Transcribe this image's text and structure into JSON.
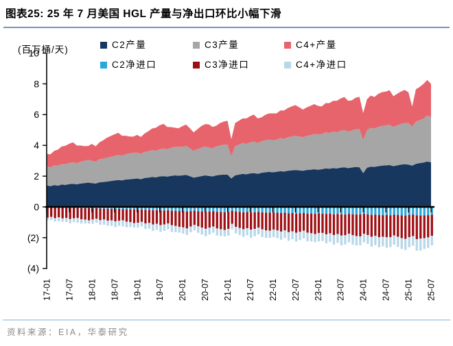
{
  "header": {
    "title": "图表25:  25 年 7 月美国 HGL 产量与净出口环比小幅下滑"
  },
  "footer": {
    "source": "资料来源：EIA，华泰研究"
  },
  "colors": {
    "title_rule": "#7295BE",
    "footer_rule": "#BDD7EE",
    "footer_text": "#8A8A8A",
    "axis": "#000000"
  },
  "legend": [
    {
      "label": "C2产量",
      "color": "#17375E"
    },
    {
      "label": "C3产量",
      "color": "#A6A6A6"
    },
    {
      "label": "C4+产量",
      "color": "#E8646C"
    },
    {
      "label": "C2净进口",
      "color": "#29A8DC"
    },
    {
      "label": "C3净进口",
      "color": "#9E0F14"
    },
    {
      "label": "C4+净进口",
      "color": "#B8D7E8"
    }
  ],
  "chart_data": {
    "type": "combo: stacked-area (production, monthly) + stacked-bar (net imports, monthly)",
    "unit_label": "(百万桶/天)",
    "x_monthly_start": "2017-01",
    "x_monthly_end": "2025-07",
    "x_tick_labels": [
      "17-01",
      "17-07",
      "18-01",
      "18-07",
      "19-01",
      "19-07",
      "20-01",
      "20-07",
      "21-01",
      "21-07",
      "22-01",
      "22-07",
      "23-01",
      "23-07",
      "24-01",
      "24-07",
      "25-01",
      "25-07"
    ],
    "y_ticks": [
      10,
      8,
      6,
      4,
      2,
      0,
      -2,
      -4
    ],
    "y_tick_labels": [
      "10",
      "8",
      "6",
      "4",
      "2",
      "0",
      "(2)",
      "(4)"
    ],
    "ylim": [
      -4,
      10
    ],
    "grid": false,
    "legend_position": "top",
    "series": [
      {
        "name": "C2产量",
        "type": "area",
        "color": "#17375E",
        "values": [
          1.4,
          1.35,
          1.42,
          1.38,
          1.45,
          1.43,
          1.48,
          1.5,
          1.47,
          1.52,
          1.55,
          1.58,
          1.55,
          1.52,
          1.6,
          1.62,
          1.65,
          1.68,
          1.72,
          1.75,
          1.73,
          1.78,
          1.8,
          1.82,
          1.85,
          1.8,
          1.88,
          1.9,
          1.95,
          1.92,
          1.98,
          2.0,
          1.97,
          2.02,
          2.05,
          2.03,
          2.05,
          2.08,
          2.0,
          1.9,
          1.95,
          2.0,
          2.05,
          2.02,
          1.98,
          2.05,
          2.08,
          2.1,
          2.1,
          1.85,
          2.05,
          2.1,
          2.15,
          2.12,
          2.18,
          2.2,
          2.15,
          2.22,
          2.25,
          2.28,
          2.25,
          2.28,
          2.32,
          2.3,
          2.35,
          2.38,
          2.4,
          2.38,
          2.35,
          2.4,
          2.42,
          2.45,
          2.42,
          2.45,
          2.5,
          2.48,
          2.52,
          2.5,
          2.55,
          2.58,
          2.52,
          2.56,
          2.6,
          2.58,
          2.2,
          2.55,
          2.62,
          2.6,
          2.65,
          2.68,
          2.7,
          2.72,
          2.65,
          2.7,
          2.75,
          2.78,
          2.75,
          2.68,
          2.8,
          2.85,
          2.88,
          2.95,
          2.9
        ]
      },
      {
        "name": "C3产量",
        "type": "area",
        "color": "#A6A6A6",
        "values": [
          1.25,
          1.22,
          1.28,
          1.3,
          1.33,
          1.35,
          1.38,
          1.4,
          1.37,
          1.42,
          1.45,
          1.48,
          1.45,
          1.42,
          1.5,
          1.52,
          1.55,
          1.58,
          1.6,
          1.62,
          1.6,
          1.65,
          1.68,
          1.7,
          1.68,
          1.65,
          1.7,
          1.72,
          1.75,
          1.73,
          1.78,
          1.8,
          1.78,
          1.82,
          1.85,
          1.88,
          1.85,
          1.88,
          1.82,
          1.75,
          1.8,
          1.85,
          1.88,
          1.85,
          1.82,
          1.88,
          1.92,
          1.95,
          1.95,
          1.45,
          1.9,
          1.95,
          2.0,
          1.98,
          2.02,
          2.05,
          2.0,
          2.05,
          2.08,
          2.1,
          2.08,
          2.1,
          2.15,
          2.12,
          2.18,
          2.2,
          2.22,
          2.2,
          2.18,
          2.22,
          2.25,
          2.28,
          2.3,
          2.28,
          2.35,
          2.32,
          2.38,
          2.35,
          2.4,
          2.42,
          2.38,
          2.42,
          2.45,
          2.48,
          2.15,
          2.45,
          2.52,
          2.5,
          2.55,
          2.58,
          2.6,
          2.62,
          2.55,
          2.6,
          2.65,
          2.68,
          2.7,
          2.55,
          2.75,
          2.8,
          2.85,
          3.0,
          2.95
        ]
      },
      {
        "name": "C4+产量",
        "type": "area",
        "color": "#E8646C",
        "values": [
          0.8,
          0.85,
          0.95,
          1.05,
          1.15,
          1.2,
          1.25,
          1.3,
          1.15,
          1.05,
          0.95,
          0.9,
          1.1,
          1.0,
          1.1,
          1.2,
          1.3,
          1.35,
          1.4,
          1.45,
          1.3,
          1.2,
          1.1,
          1.05,
          1.15,
          1.1,
          1.2,
          1.3,
          1.4,
          1.5,
          1.55,
          1.6,
          1.45,
          1.35,
          1.25,
          1.2,
          1.35,
          1.4,
          1.3,
          1.2,
          1.3,
          1.4,
          1.45,
          1.5,
          1.4,
          1.35,
          1.45,
          1.5,
          1.55,
          1.1,
          1.5,
          1.55,
          1.6,
          1.65,
          1.7,
          1.75,
          1.6,
          1.55,
          1.65,
          1.7,
          1.75,
          1.7,
          1.8,
          1.85,
          1.9,
          1.95,
          2.0,
          1.9,
          1.8,
          1.85,
          1.9,
          1.95,
          1.85,
          1.8,
          1.9,
          1.95,
          2.0,
          2.05,
          2.1,
          2.15,
          2.0,
          1.95,
          2.05,
          2.1,
          1.75,
          2.0,
          2.1,
          2.05,
          2.15,
          2.2,
          2.2,
          2.25,
          2.0,
          2.05,
          2.1,
          2.15,
          2.0,
          1.3,
          2.1,
          2.15,
          2.27,
          2.3,
          2.15
        ]
      },
      {
        "name": "C2净进口",
        "type": "bar",
        "color": "#29A8DC",
        "values": [
          -0.04,
          -0.05,
          -0.05,
          -0.06,
          -0.05,
          -0.06,
          -0.07,
          -0.06,
          -0.07,
          -0.08,
          -0.08,
          -0.09,
          -0.1,
          -0.09,
          -0.11,
          -0.12,
          -0.12,
          -0.13,
          -0.14,
          -0.13,
          -0.15,
          -0.16,
          -0.15,
          -0.17,
          -0.18,
          -0.17,
          -0.19,
          -0.2,
          -0.22,
          -0.21,
          -0.23,
          -0.24,
          -0.22,
          -0.25,
          -0.26,
          -0.27,
          -0.28,
          -0.3,
          -0.27,
          -0.25,
          -0.28,
          -0.3,
          -0.32,
          -0.3,
          -0.28,
          -0.32,
          -0.33,
          -0.35,
          -0.33,
          -0.25,
          -0.3,
          -0.32,
          -0.35,
          -0.33,
          -0.36,
          -0.35,
          -0.32,
          -0.36,
          -0.38,
          -0.37,
          -0.36,
          -0.38,
          -0.4,
          -0.38,
          -0.42,
          -0.4,
          -0.43,
          -0.42,
          -0.4,
          -0.44,
          -0.43,
          -0.45,
          -0.42,
          -0.44,
          -0.46,
          -0.44,
          -0.48,
          -0.46,
          -0.48,
          -0.5,
          -0.46,
          -0.48,
          -0.5,
          -0.48,
          -0.45,
          -0.48,
          -0.52,
          -0.5,
          -0.52,
          -0.54,
          -0.52,
          -0.55,
          -0.5,
          -0.52,
          -0.55,
          -0.56,
          -0.52,
          -0.5,
          -0.55,
          -0.56,
          -0.55,
          -0.54,
          -0.5
        ]
      },
      {
        "name": "C3净进口",
        "type": "bar",
        "color": "#9E0F14",
        "values": [
          -0.65,
          -0.6,
          -0.68,
          -0.62,
          -0.7,
          -0.66,
          -0.72,
          -0.68,
          -0.65,
          -0.72,
          -0.75,
          -0.78,
          -0.72,
          -0.68,
          -0.75,
          -0.7,
          -0.78,
          -0.74,
          -0.8,
          -0.76,
          -0.72,
          -0.8,
          -0.84,
          -0.88,
          -0.85,
          -0.8,
          -0.88,
          -0.84,
          -0.92,
          -0.88,
          -0.95,
          -0.9,
          -0.86,
          -0.94,
          -0.98,
          -1.02,
          -1.05,
          -1.1,
          -1.0,
          -0.92,
          -0.98,
          -1.05,
          -1.1,
          -1.05,
          -1.0,
          -1.08,
          -1.12,
          -1.15,
          -1.1,
          -0.85,
          -1.0,
          -1.05,
          -1.1,
          -1.05,
          -1.12,
          -1.08,
          -1.02,
          -1.1,
          -1.15,
          -1.18,
          -1.12,
          -1.15,
          -1.2,
          -1.15,
          -1.22,
          -1.18,
          -1.25,
          -1.2,
          -1.15,
          -1.24,
          -1.28,
          -1.32,
          -1.28,
          -1.25,
          -1.32,
          -1.28,
          -1.35,
          -1.3,
          -1.38,
          -1.34,
          -1.28,
          -1.36,
          -1.4,
          -1.44,
          -1.3,
          -1.35,
          -1.42,
          -1.38,
          -1.45,
          -1.4,
          -1.45,
          -1.42,
          -1.35,
          -1.42,
          -1.48,
          -1.52,
          -1.45,
          -1.4,
          -1.55,
          -1.5,
          -1.48,
          -1.44,
          -1.38
        ]
      },
      {
        "name": "C4+净进口",
        "type": "bar",
        "color": "#B8D7E8",
        "values": [
          -0.18,
          -0.2,
          -0.22,
          -0.25,
          -0.22,
          -0.26,
          -0.28,
          -0.25,
          -0.3,
          -0.28,
          -0.25,
          -0.22,
          -0.28,
          -0.25,
          -0.3,
          -0.34,
          -0.32,
          -0.36,
          -0.38,
          -0.34,
          -0.4,
          -0.36,
          -0.32,
          -0.3,
          -0.32,
          -0.3,
          -0.36,
          -0.38,
          -0.42,
          -0.4,
          -0.44,
          -0.42,
          -0.38,
          -0.44,
          -0.4,
          -0.38,
          -0.4,
          -0.42,
          -0.38,
          -0.35,
          -0.42,
          -0.45,
          -0.48,
          -0.44,
          -0.4,
          -0.46,
          -0.44,
          -0.42,
          -0.44,
          -0.35,
          -0.42,
          -0.46,
          -0.5,
          -0.46,
          -0.52,
          -0.48,
          -0.44,
          -0.5,
          -0.48,
          -0.46,
          -0.48,
          -0.5,
          -0.54,
          -0.5,
          -0.56,
          -0.52,
          -0.58,
          -0.54,
          -0.5,
          -0.56,
          -0.54,
          -0.52,
          -0.54,
          -0.52,
          -0.58,
          -0.56,
          -0.62,
          -0.58,
          -0.64,
          -0.6,
          -0.56,
          -0.62,
          -0.6,
          -0.58,
          -0.55,
          -0.58,
          -0.64,
          -0.6,
          -0.66,
          -0.62,
          -0.68,
          -0.64,
          -0.6,
          -0.66,
          -0.7,
          -0.72,
          -0.65,
          -0.62,
          -0.75,
          -0.78,
          -0.7,
          -0.68,
          -0.62
        ]
      }
    ]
  }
}
